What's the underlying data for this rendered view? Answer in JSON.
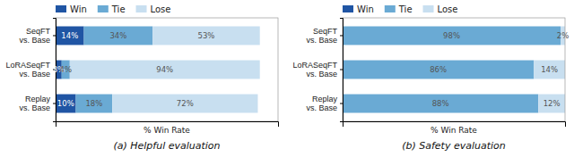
{
  "chart_data": [
    {
      "type": "bar",
      "orientation": "horizontal",
      "stacked": true,
      "subtitle": "(a) Helpful evaluation",
      "xlabel": "% Win Rate",
      "categories": [
        "SeqFT\nvs. Base",
        "LoRASeqFT\nvs. Base",
        "Replay\nvs. Base"
      ],
      "series": [
        {
          "name": "Win",
          "color": "#2055a4",
          "values": [
            14,
            3,
            10
          ],
          "value_labels": [
            "14%",
            "3%",
            "10%"
          ]
        },
        {
          "name": "Tie",
          "color": "#6aaad4",
          "values": [
            34,
            4,
            18
          ],
          "value_labels": [
            "34%",
            "4%",
            "18%"
          ]
        },
        {
          "name": "Lose",
          "color": "#c8dff0",
          "values": [
            53,
            94,
            72
          ],
          "value_labels": [
            "53%",
            "94%",
            "72%"
          ]
        }
      ],
      "xlim": [
        0,
        110
      ],
      "xticks": [],
      "tick_labels": "y",
      "data_labels": true,
      "legend": "top"
    },
    {
      "type": "bar",
      "orientation": "horizontal",
      "stacked": true,
      "subtitle": "(b) Safety evaluation",
      "xlabel": "% Win Rate",
      "categories": [
        "SeqFT\nvs. Base",
        "LoRASeqFT\nvs. Base",
        "Replay\nvs. Base"
      ],
      "series": [
        {
          "name": "Win",
          "color": "#2055a4",
          "values": [
            0,
            0,
            0
          ],
          "value_labels": [
            null,
            null,
            null
          ]
        },
        {
          "name": "Tie",
          "color": "#6aaad4",
          "values": [
            98,
            86,
            88
          ],
          "value_labels": [
            "98%",
            "86%",
            "88%"
          ]
        },
        {
          "name": "Lose",
          "color": "#c8dff0",
          "values": [
            2,
            14,
            12
          ],
          "value_labels": [
            "2%",
            "14%",
            "12%"
          ]
        }
      ],
      "xlim": [
        0,
        100
      ],
      "xticks": [],
      "tick_labels": "y",
      "data_labels": true,
      "legend": "top"
    }
  ]
}
